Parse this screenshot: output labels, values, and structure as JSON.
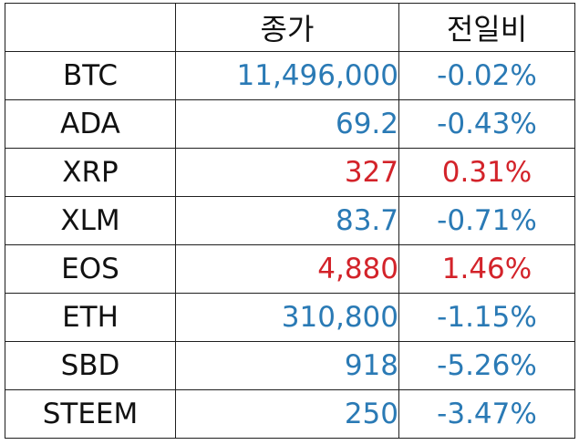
{
  "header": {
    "symbol": "",
    "price": "종가",
    "change": "전일비"
  },
  "colors": {
    "down": "#2a7ab5",
    "up": "#d3232a"
  },
  "rows": [
    {
      "symbol": "BTC",
      "price": "11,496,000",
      "change": "-0.02%",
      "dir": "down"
    },
    {
      "symbol": "ADA",
      "price": "69.2",
      "change": "-0.43%",
      "dir": "down"
    },
    {
      "symbol": "XRP",
      "price": "327",
      "change": "0.31%",
      "dir": "up"
    },
    {
      "symbol": "XLM",
      "price": "83.7",
      "change": "-0.71%",
      "dir": "down"
    },
    {
      "symbol": "EOS",
      "price": "4,880",
      "change": "1.46%",
      "dir": "up"
    },
    {
      "symbol": "ETH",
      "price": "310,800",
      "change": "-1.15%",
      "dir": "down"
    },
    {
      "symbol": "SBD",
      "price": "918",
      "change": "-5.26%",
      "dir": "down"
    },
    {
      "symbol": "STEEM",
      "price": "250",
      "change": "-3.47%",
      "dir": "down"
    }
  ]
}
